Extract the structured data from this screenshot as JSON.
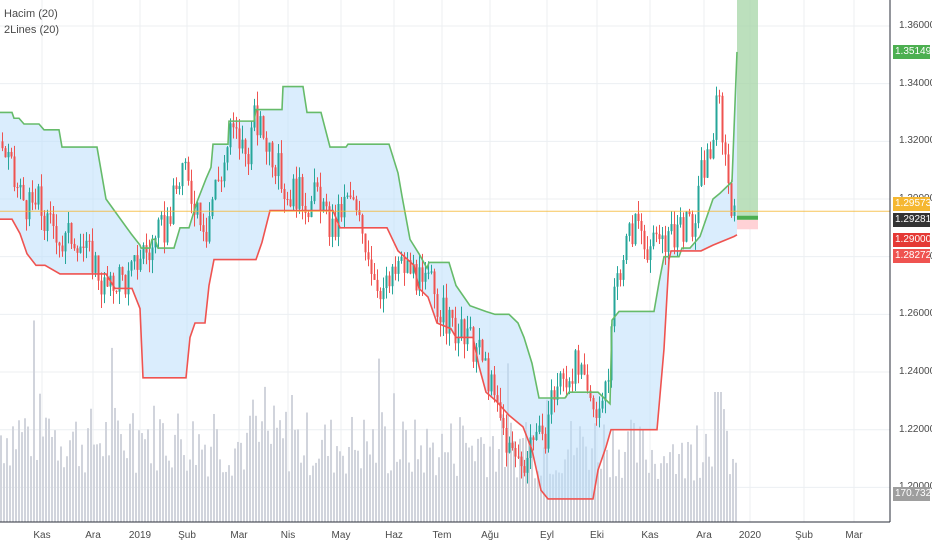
{
  "chart_data": {
    "type": "candlestick",
    "indicators": [
      "Hacim (20)",
      "2Lines (20)"
    ],
    "x_tick_labels": [
      "Kas",
      "Ara",
      "2019",
      "Şub",
      "Mar",
      "Nis",
      "May",
      "Haz",
      "Tem",
      "Ağu",
      "Eyl",
      "Eki",
      "Kas",
      "Ara",
      "2020",
      "Şub",
      "Mar"
    ],
    "y_tick_labels": [
      "1.36000",
      "1.34000",
      "1.32000",
      "1.30000",
      "1.28000",
      "1.26000",
      "1.24000",
      "1.22000",
      "1.20000"
    ],
    "ylim": [
      1.188,
      1.369
    ],
    "badges": [
      {
        "value": "1.35149",
        "color": "#4caf50"
      },
      {
        "value": "1.29573",
        "color": "#f5b731"
      },
      {
        "value": "1.29281",
        "color": "#333333"
      },
      {
        "value": "1.29000",
        "color": "#e53935"
      },
      {
        "value": "1.28272",
        "color": "#ef5350"
      },
      {
        "value": "170.732K",
        "color": "#9e9e9e"
      }
    ],
    "horizontal_line": 1.29573,
    "upper_line": [
      [
        0,
        1.33
      ],
      [
        12,
        1.33
      ],
      [
        14,
        1.328
      ],
      [
        19,
        1.328
      ],
      [
        24,
        1.326
      ],
      [
        39,
        1.326
      ],
      [
        44,
        1.324
      ],
      [
        59,
        1.324
      ],
      [
        62,
        1.318
      ],
      [
        97,
        1.318
      ],
      [
        106,
        1.3
      ],
      [
        131,
        1.288
      ],
      [
        140,
        1.284
      ],
      [
        141,
        1.283
      ],
      [
        150,
        1.283
      ],
      [
        152,
        1.286
      ],
      [
        155,
        1.286
      ],
      [
        158,
        1.283
      ],
      [
        174,
        1.283
      ],
      [
        180,
        1.29
      ],
      [
        189,
        1.29
      ],
      [
        197,
        1.299
      ],
      [
        206,
        1.307
      ],
      [
        211,
        1.311
      ],
      [
        213,
        1.319
      ],
      [
        228,
        1.319
      ],
      [
        229,
        1.327
      ],
      [
        254,
        1.327
      ],
      [
        256,
        1.331
      ],
      [
        282,
        1.331
      ],
      [
        283,
        1.339
      ],
      [
        303,
        1.339
      ],
      [
        307,
        1.33
      ],
      [
        321,
        1.33
      ],
      [
        330,
        1.318
      ],
      [
        346,
        1.318
      ],
      [
        348,
        1.319
      ],
      [
        389,
        1.319
      ],
      [
        398,
        1.309
      ],
      [
        402,
        1.301
      ],
      [
        410,
        1.286
      ],
      [
        419,
        1.281
      ],
      [
        427,
        1.276
      ],
      [
        429,
        1.278
      ],
      [
        449,
        1.278
      ],
      [
        456,
        1.27
      ],
      [
        470,
        1.263
      ],
      [
        486,
        1.261
      ],
      [
        495,
        1.26
      ],
      [
        509,
        1.26
      ],
      [
        518,
        1.257
      ],
      [
        524,
        1.252
      ],
      [
        532,
        1.243
      ],
      [
        539,
        1.231
      ],
      [
        565,
        1.231
      ],
      [
        569,
        1.233
      ],
      [
        598,
        1.233
      ],
      [
        610,
        1.229
      ],
      [
        612,
        1.258
      ],
      [
        619,
        1.261
      ],
      [
        654,
        1.261
      ],
      [
        659,
        1.271
      ],
      [
        664,
        1.28
      ],
      [
        679,
        1.28
      ],
      [
        682,
        1.283
      ],
      [
        690,
        1.283
      ],
      [
        700,
        1.287
      ],
      [
        713,
        1.3
      ],
      [
        720,
        1.302
      ],
      [
        732,
        1.306
      ],
      [
        737,
        1.351
      ]
    ],
    "lower_line": [
      [
        0,
        1.293
      ],
      [
        12,
        1.293
      ],
      [
        20,
        1.288
      ],
      [
        27,
        1.281
      ],
      [
        36,
        1.277
      ],
      [
        45,
        1.277
      ],
      [
        60,
        1.274
      ],
      [
        106,
        1.274
      ],
      [
        115,
        1.269
      ],
      [
        132,
        1.269
      ],
      [
        140,
        1.262
      ],
      [
        143,
        1.238
      ],
      [
        186,
        1.238
      ],
      [
        190,
        1.252
      ],
      [
        195,
        1.257
      ],
      [
        205,
        1.257
      ],
      [
        209,
        1.27
      ],
      [
        214,
        1.279
      ],
      [
        256,
        1.279
      ],
      [
        262,
        1.285
      ],
      [
        270,
        1.296
      ],
      [
        333,
        1.296
      ],
      [
        340,
        1.29
      ],
      [
        387,
        1.29
      ],
      [
        398,
        1.282
      ],
      [
        414,
        1.277
      ],
      [
        419,
        1.269
      ],
      [
        428,
        1.266
      ],
      [
        437,
        1.257
      ],
      [
        451,
        1.255
      ],
      [
        456,
        1.252
      ],
      [
        473,
        1.252
      ],
      [
        479,
        1.242
      ],
      [
        486,
        1.233
      ],
      [
        496,
        1.23
      ],
      [
        509,
        1.225
      ],
      [
        523,
        1.221
      ],
      [
        532,
        1.213
      ],
      [
        541,
        1.199
      ],
      [
        548,
        1.196
      ],
      [
        593,
        1.196
      ],
      [
        598,
        1.206
      ],
      [
        606,
        1.214
      ],
      [
        611,
        1.22
      ],
      [
        657,
        1.22
      ],
      [
        664,
        1.248
      ],
      [
        669,
        1.279
      ],
      [
        671,
        1.282
      ],
      [
        701,
        1.282
      ],
      [
        713,
        1.284
      ],
      [
        734,
        1.287
      ],
      [
        737,
        1.2876
      ]
    ],
    "candles_close_path": [
      [
        0,
        1.32
      ],
      [
        8,
        1.313
      ],
      [
        14,
        1.305
      ],
      [
        22,
        1.301
      ],
      [
        30,
        1.296
      ],
      [
        38,
        1.299
      ],
      [
        46,
        1.29
      ],
      [
        54,
        1.292
      ],
      [
        62,
        1.284
      ],
      [
        70,
        1.288
      ],
      [
        78,
        1.287
      ],
      [
        86,
        1.281
      ],
      [
        94,
        1.279
      ],
      [
        102,
        1.27
      ],
      [
        110,
        1.268
      ],
      [
        118,
        1.274
      ],
      [
        126,
        1.271
      ],
      [
        134,
        1.276
      ],
      [
        142,
        1.283
      ],
      [
        150,
        1.281
      ],
      [
        158,
        1.287
      ],
      [
        166,
        1.291
      ],
      [
        174,
        1.3
      ],
      [
        182,
        1.311
      ],
      [
        190,
        1.302
      ],
      [
        198,
        1.298
      ],
      [
        206,
        1.29
      ],
      [
        214,
        1.304
      ],
      [
        222,
        1.31
      ],
      [
        230,
        1.323
      ],
      [
        238,
        1.321
      ],
      [
        246,
        1.315
      ],
      [
        254,
        1.327
      ],
      [
        262,
        1.323
      ],
      [
        270,
        1.318
      ],
      [
        278,
        1.31
      ],
      [
        286,
        1.301
      ],
      [
        294,
        1.303
      ],
      [
        302,
        1.301
      ],
      [
        310,
        1.298
      ],
      [
        318,
        1.303
      ],
      [
        326,
        1.292
      ],
      [
        334,
        1.289
      ],
      [
        342,
        1.297
      ],
      [
        350,
        1.3
      ],
      [
        358,
        1.292
      ],
      [
        366,
        1.285
      ],
      [
        374,
        1.274
      ],
      [
        382,
        1.269
      ],
      [
        390,
        1.27
      ],
      [
        398,
        1.277
      ],
      [
        406,
        1.276
      ],
      [
        414,
        1.275
      ],
      [
        422,
        1.268
      ],
      [
        430,
        1.272
      ],
      [
        438,
        1.263
      ],
      [
        446,
        1.258
      ],
      [
        454,
        1.255
      ],
      [
        462,
        1.252
      ],
      [
        470,
        1.25
      ],
      [
        478,
        1.247
      ],
      [
        486,
        1.241
      ],
      [
        494,
        1.23
      ],
      [
        502,
        1.221
      ],
      [
        510,
        1.212
      ],
      [
        518,
        1.21
      ],
      [
        526,
        1.21
      ],
      [
        534,
        1.222
      ],
      [
        542,
        1.213
      ],
      [
        550,
        1.23
      ],
      [
        558,
        1.236
      ],
      [
        566,
        1.238
      ],
      [
        574,
        1.243
      ],
      [
        582,
        1.236
      ],
      [
        590,
        1.229
      ],
      [
        598,
        1.229
      ],
      [
        606,
        1.231
      ],
      [
        614,
        1.268
      ],
      [
        622,
        1.281
      ],
      [
        630,
        1.288
      ],
      [
        638,
        1.293
      ],
      [
        646,
        1.285
      ],
      [
        654,
        1.283
      ],
      [
        662,
        1.288
      ],
      [
        670,
        1.285
      ],
      [
        678,
        1.292
      ],
      [
        686,
        1.29
      ],
      [
        694,
        1.29
      ],
      [
        702,
        1.311
      ],
      [
        710,
        1.316
      ],
      [
        718,
        1.336
      ],
      [
        726,
        1.312
      ],
      [
        734,
        1.293
      ],
      [
        737,
        1.2928
      ]
    ],
    "volume_profile": [
      [
        0,
        0.52
      ],
      [
        40,
        0.55
      ],
      [
        80,
        0.48
      ],
      [
        120,
        0.5
      ],
      [
        160,
        0.52
      ],
      [
        200,
        0.47
      ],
      [
        240,
        0.46
      ],
      [
        280,
        0.5
      ],
      [
        320,
        0.45
      ],
      [
        360,
        0.47
      ],
      [
        400,
        0.44
      ],
      [
        440,
        0.43
      ],
      [
        480,
        0.47
      ],
      [
        520,
        0.45
      ],
      [
        560,
        0.44
      ],
      [
        600,
        0.48
      ],
      [
        640,
        0.42
      ],
      [
        680,
        0.36
      ],
      [
        720,
        0.55
      ],
      [
        737,
        0.3
      ]
    ],
    "highlight_box": {
      "from": 1.2928,
      "to": 1.369,
      "profit_color": "#a5d6a7",
      "loss_color": "#ffcdd2",
      "stop": 1.2895
    }
  }
}
